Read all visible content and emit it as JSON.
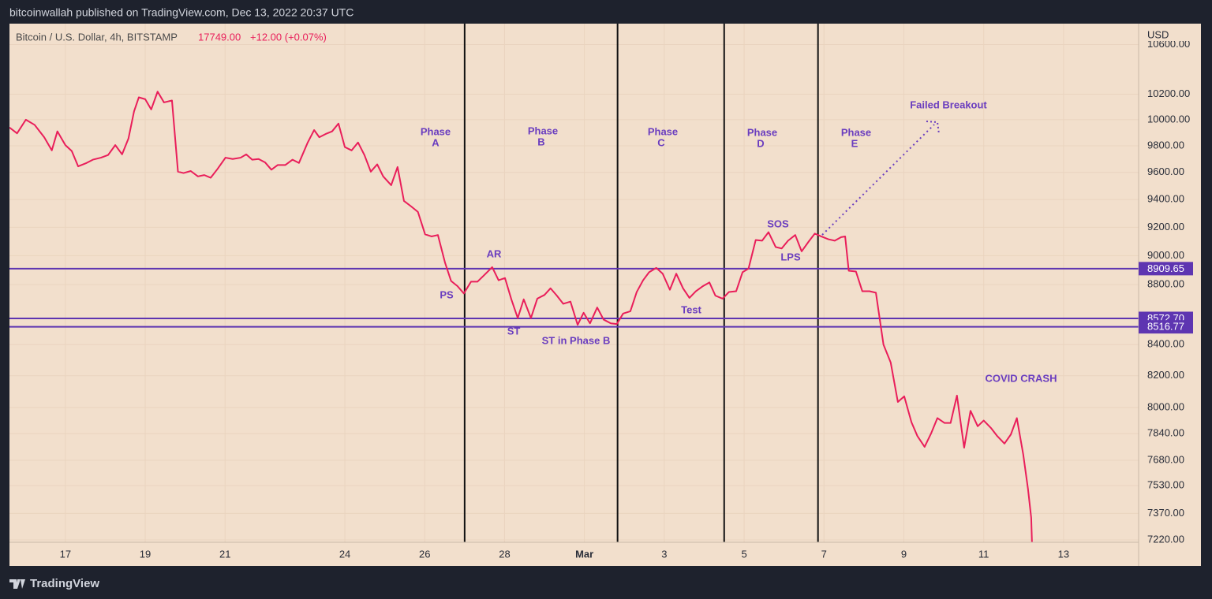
{
  "header": "bitcoinwallah published on TradingView.com, Dec 13, 2022 20:37 UTC",
  "footer": "TradingView",
  "chart_data": {
    "type": "line",
    "title": "Bitcoin / U.S. Dollar, 4h, BITSTAMP",
    "last_price": "17749.00",
    "change": "+12.00 (+0.07%)",
    "currency": "USD",
    "log_scale": true,
    "grid": true,
    "color": "#e91e5a",
    "x": [
      15.6,
      15.79,
      16.01,
      16.23,
      16.47,
      16.66,
      16.8,
      17,
      17.16,
      17.32,
      17.53,
      17.69,
      17.89,
      18.07,
      18.25,
      18.42,
      18.58,
      18.72,
      18.84,
      19,
      19.15,
      19.31,
      19.47,
      19.67,
      19.82,
      19.96,
      20.14,
      20.32,
      20.48,
      20.64,
      20.81,
      21.01,
      21.19,
      21.39,
      21.53,
      21.68,
      21.84,
      22,
      22.16,
      22.32,
      22.51,
      22.69,
      22.85,
      23.07,
      23.23,
      23.36,
      23.52,
      23.68,
      23.84,
      24,
      24.17,
      24.33,
      24.49,
      24.65,
      24.81,
      24.96,
      25.16,
      25.32,
      25.48,
      25.66,
      25.83,
      26.01,
      26.17,
      26.33,
      26.51,
      26.66,
      26.82,
      26.98,
      27.16,
      27.32,
      27.49,
      27.69,
      27.85,
      28.01,
      28.17,
      28.33,
      28.48,
      28.66,
      28.82,
      29,
      29.15,
      29.31,
      29.47,
      29.65,
      29.83,
      29.98,
      30.14,
      30.32,
      30.48,
      30.66,
      30.81,
      30.97,
      31.15,
      31.31,
      31.47,
      31.62,
      31.8,
      31.96,
      32.14,
      32.3,
      32.47,
      32.63,
      32.79,
      32.97,
      33.13,
      33.28,
      33.46,
      33.62,
      33.8,
      33.96,
      34.11,
      34.29,
      34.45,
      34.61,
      34.79,
      34.94,
      35.1,
      35.28,
      35.44,
      35.62,
      35.77,
      35.93,
      36.11,
      36.27,
      36.43,
      36.53,
      36.62,
      36.8,
      36.96,
      37.14,
      37.3,
      37.49,
      37.67,
      37.85,
      38.01,
      38.19,
      38.34,
      38.52,
      38.68,
      38.84,
      39.02,
      39.17,
      39.33,
      39.51,
      39.67,
      39.85,
      40,
      40.18,
      40.34,
      40.52,
      40.68,
      40.83,
      40.99,
      41.11,
      41.19,
      41.21
    ],
    "values": [
      9940,
      9895,
      10000,
      9960,
      9865,
      9765,
      9910,
      9805,
      9760,
      9645,
      9670,
      9695,
      9710,
      9730,
      9805,
      9735,
      9855,
      10065,
      10175,
      10160,
      10080,
      10220,
      10135,
      10150,
      9605,
      9595,
      9610,
      9570,
      9580,
      9560,
      9625,
      9710,
      9700,
      9710,
      9735,
      9695,
      9700,
      9675,
      9620,
      9655,
      9655,
      9695,
      9670,
      9825,
      9920,
      9865,
      9890,
      9910,
      9970,
      9790,
      9765,
      9825,
      9730,
      9605,
      9660,
      9570,
      9505,
      9640,
      9390,
      9350,
      9310,
      9150,
      9135,
      9145,
      8950,
      8825,
      8790,
      8740,
      8820,
      8820,
      8865,
      8920,
      8830,
      8845,
      8700,
      8575,
      8700,
      8575,
      8705,
      8730,
      8775,
      8725,
      8670,
      8685,
      8530,
      8610,
      8540,
      8645,
      8565,
      8540,
      8535,
      8605,
      8620,
      8750,
      8830,
      8885,
      8915,
      8875,
      8765,
      8875,
      8775,
      8710,
      8755,
      8790,
      8815,
      8725,
      8705,
      8750,
      8755,
      8885,
      8910,
      9110,
      9105,
      9165,
      9060,
      9050,
      9105,
      9145,
      9030,
      9100,
      9155,
      9135,
      9115,
      9105,
      9130,
      9135,
      8895,
      8890,
      8755,
      8755,
      8745,
      8400,
      8285,
      8035,
      8070,
      7910,
      7825,
      7760,
      7840,
      7935,
      7905,
      7905,
      8075,
      7755,
      7980,
      7885,
      7920,
      7875,
      7825,
      7780,
      7835,
      7935,
      7715,
      7510,
      7345,
      7200
    ],
    "xlim": [
      15.6,
      43.88
    ],
    "xticks": [
      17,
      19,
      21,
      24,
      26,
      28,
      {
        "value": 30,
        "label": "Mar"
      },
      {
        "value": 32,
        "label": "3"
      },
      {
        "value": 34,
        "label": "5"
      },
      {
        "value": 36,
        "label": "7"
      },
      {
        "value": 38,
        "label": "9"
      },
      {
        "value": 40,
        "label": "11"
      },
      {
        "value": 42,
        "label": "13"
      }
    ],
    "ylim": [
      7207,
      10773
    ],
    "yticks": [
      {
        "value": 10600,
        "label": "10600.00"
      },
      {
        "value": 10200,
        "label": "10200.00"
      },
      {
        "value": 10000,
        "label": "10000.00"
      },
      {
        "value": 9800,
        "label": "9800.00"
      },
      {
        "value": 9600,
        "label": "9600.00"
      },
      {
        "value": 9400,
        "label": "9400.00"
      },
      {
        "value": 9200,
        "label": "9200.00"
      },
      {
        "value": 9000,
        "label": "9000.00"
      },
      {
        "value": 8800,
        "label": "8800.00"
      },
      {
        "value": 8400,
        "label": "8400.00"
      },
      {
        "value": 8200,
        "label": "8200.00"
      },
      {
        "value": 8000,
        "label": "8000.00"
      },
      {
        "value": 7840,
        "label": "7840.00"
      },
      {
        "value": 7680,
        "label": "7680.00"
      },
      {
        "value": 7530,
        "label": "7530.00"
      },
      {
        "value": 7370,
        "label": "7370.00"
      },
      {
        "value": 7220,
        "label": "7220.00"
      }
    ],
    "hlines": [
      8909.65,
      {
        "value": 8572.7,
        "label": "8572.70"
      },
      8516.77
    ],
    "hline_color": "#5e35b1",
    "vlines": [
      27.0,
      30.83,
      33.5,
      35.85
    ],
    "phases": [
      [
        "Phase",
        "A"
      ],
      [
        "Phase",
        "B"
      ],
      [
        "Phase",
        "C"
      ],
      [
        "Phase",
        "D"
      ],
      [
        "Phase",
        "E"
      ]
    ],
    "annotations": [
      "Failed Breakout",
      "PS",
      "AR",
      "ST",
      "ST in Phase B",
      "Test",
      "SOS",
      "LPS",
      "COVID CRASH"
    ]
  }
}
